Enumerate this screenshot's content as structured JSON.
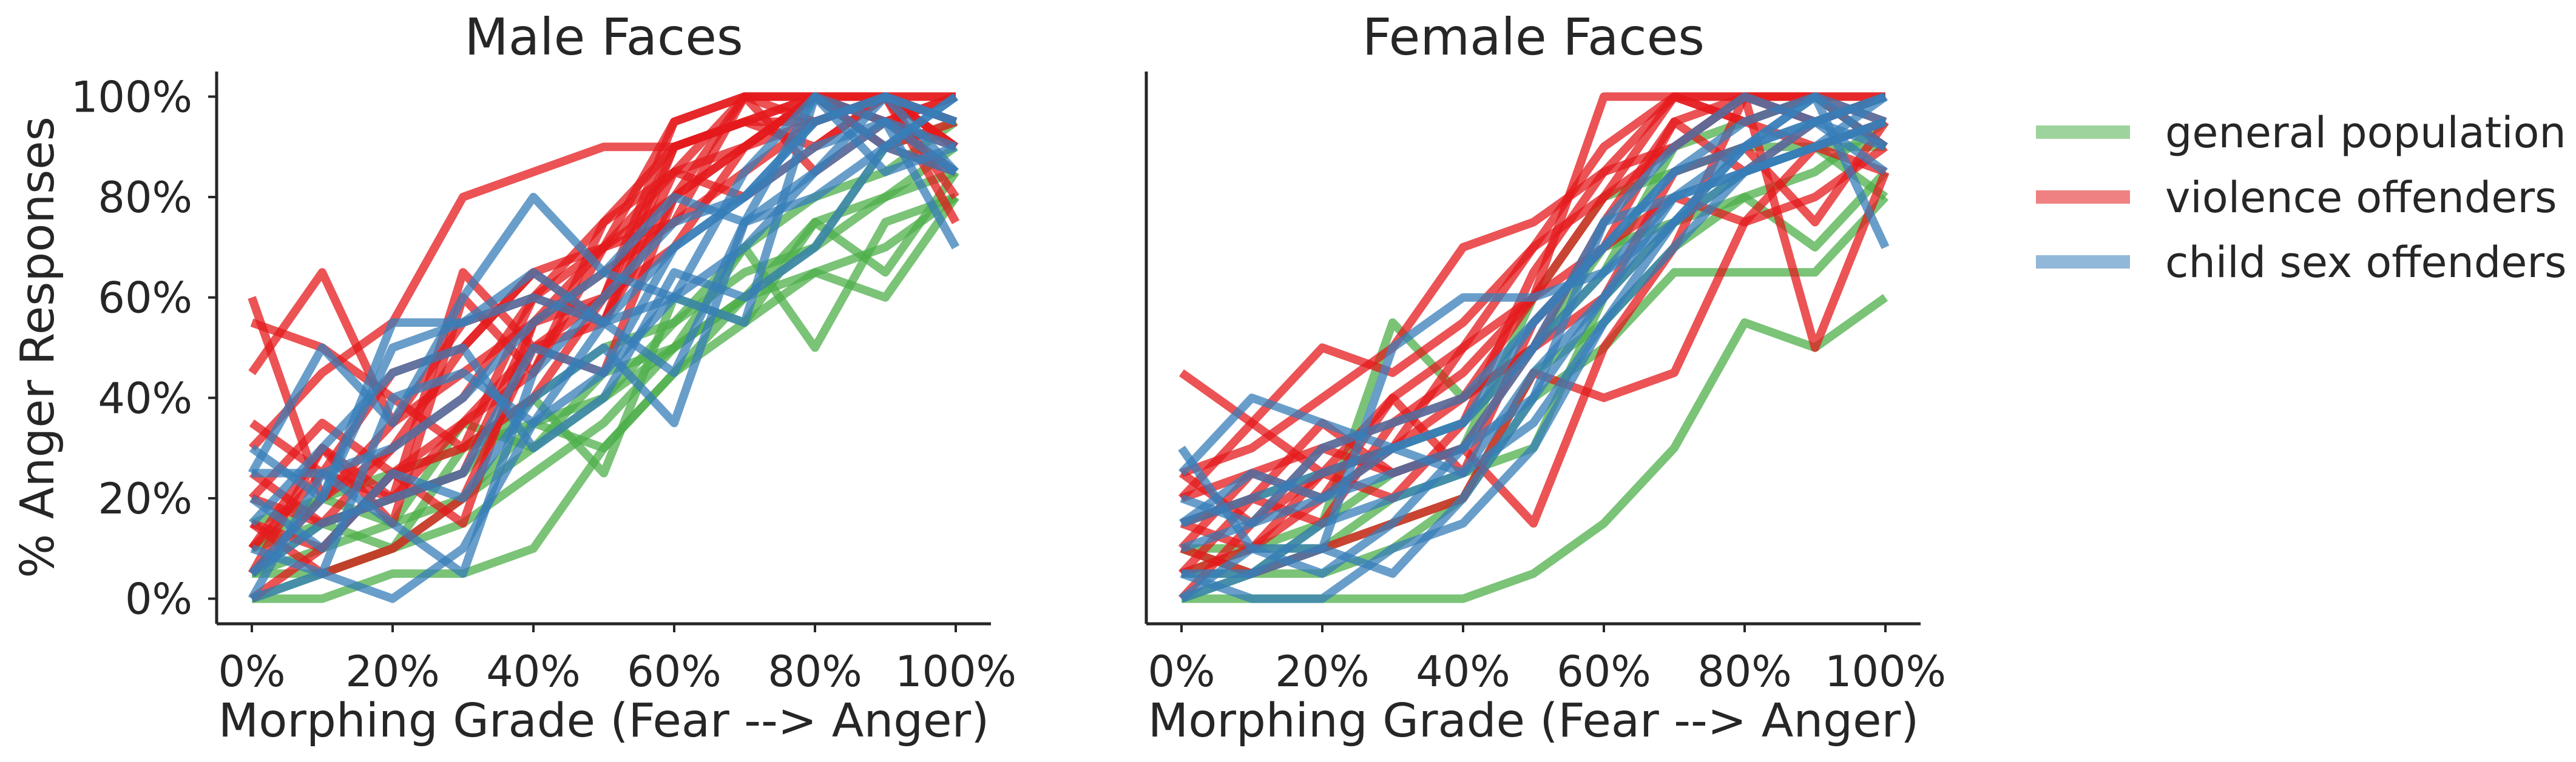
{
  "chart_data": [
    {
      "type": "line",
      "title": "Male Faces",
      "xlabel": "Morphing Grade (Fear --> Anger)",
      "ylabel": "% Anger Responses",
      "x": [
        0,
        10,
        20,
        30,
        40,
        50,
        60,
        70,
        80,
        90,
        100
      ],
      "xticks": [
        0,
        20,
        40,
        60,
        80,
        100
      ],
      "xtick_labels": [
        "0%",
        "20%",
        "40%",
        "60%",
        "80%",
        "100%"
      ],
      "yticks": [
        0,
        20,
        40,
        60,
        80,
        100
      ],
      "ytick_labels": [
        "0%",
        "20%",
        "40%",
        "60%",
        "80%",
        "100%"
      ],
      "xlim": [
        -5,
        105
      ],
      "ylim": [
        -5,
        105
      ],
      "grid": false,
      "groups": [
        {
          "group": "general population",
          "lines": [
            [
              5,
              15,
              10,
              30,
              40,
              25,
              60,
              55,
              75,
              80,
              85
            ],
            [
              10,
              15,
              20,
              25,
              40,
              50,
              55,
              65,
              70,
              80,
              90
            ],
            [
              0,
              5,
              10,
              20,
              30,
              45,
              50,
              70,
              50,
              75,
              80
            ],
            [
              5,
              10,
              15,
              20,
              35,
              30,
              45,
              60,
              75,
              65,
              85
            ],
            [
              15,
              20,
              25,
              30,
              35,
              40,
              50,
              60,
              65,
              60,
              80
            ],
            [
              0,
              0,
              5,
              5,
              10,
              30,
              45,
              55,
              65,
              70,
              80
            ],
            [
              10,
              20,
              15,
              35,
              30,
              40,
              55,
              70,
              80,
              85,
              95
            ],
            [
              5,
              5,
              10,
              15,
              25,
              35,
              50,
              60,
              70,
              90,
              95
            ]
          ]
        },
        {
          "group": "violence offenders",
          "lines": [
            [
              30,
              45,
              55,
              80,
              85,
              90,
              90,
              95,
              95,
              100,
              95
            ],
            [
              60,
              20,
              30,
              50,
              65,
              70,
              85,
              100,
              100,
              95,
              90
            ],
            [
              55,
              50,
              40,
              30,
              60,
              75,
              90,
              95,
              100,
              100,
              90
            ],
            [
              45,
              65,
              35,
              55,
              60,
              70,
              95,
              100,
              100,
              95,
              85
            ],
            [
              15,
              10,
              25,
              35,
              50,
              55,
              80,
              90,
              100,
              100,
              75
            ],
            [
              10,
              25,
              20,
              65,
              50,
              60,
              95,
              100,
              95,
              100,
              90
            ],
            [
              5,
              30,
              15,
              60,
              45,
              70,
              80,
              100,
              100,
              90,
              95
            ],
            [
              20,
              35,
              25,
              15,
              55,
              65,
              75,
              85,
              95,
              100,
              100
            ],
            [
              25,
              15,
              30,
              40,
              60,
              55,
              90,
              95,
              90,
              100,
              95
            ],
            [
              15,
              5,
              10,
              20,
              50,
              45,
              80,
              90,
              100,
              95,
              100
            ],
            [
              0,
              10,
              25,
              30,
              40,
              60,
              70,
              90,
              95,
              100,
              100
            ],
            [
              35,
              25,
              45,
              50,
              65,
              55,
              85,
              80,
              90,
              100,
              90
            ],
            [
              10,
              30,
              20,
              25,
              55,
              70,
              75,
              100,
              85,
              95,
              100
            ],
            [
              5,
              20,
              35,
              45,
              55,
              60,
              90,
              95,
              100,
              90,
              85
            ],
            [
              20,
              15,
              20,
              35,
              45,
              75,
              85,
              90,
              100,
              100,
              80
            ]
          ]
        },
        {
          "group": "child sex offenders",
          "lines": [
            [
              25,
              50,
              35,
              60,
              80,
              65,
              60,
              55,
              100,
              95,
              90
            ],
            [
              5,
              20,
              55,
              55,
              65,
              55,
              45,
              75,
              85,
              95,
              70
            ],
            [
              0,
              5,
              0,
              10,
              35,
              45,
              70,
              80,
              95,
              100,
              95
            ],
            [
              10,
              5,
              40,
              45,
              35,
              55,
              60,
              85,
              100,
              90,
              85
            ],
            [
              30,
              20,
              50,
              55,
              60,
              55,
              70,
              80,
              95,
              100,
              85
            ],
            [
              20,
              10,
              25,
              20,
              40,
              50,
              35,
              75,
              80,
              90,
              100
            ],
            [
              0,
              25,
              15,
              5,
              45,
              60,
              75,
              80,
              90,
              95,
              85
            ],
            [
              15,
              30,
              45,
              50,
              30,
              40,
              65,
              60,
              70,
              90,
              100
            ],
            [
              5,
              15,
              20,
              25,
              50,
              45,
              60,
              70,
              85,
              100,
              95
            ],
            [
              25,
              25,
              30,
              40,
              55,
              65,
              80,
              75,
              100,
              85,
              90
            ]
          ]
        }
      ]
    },
    {
      "type": "line",
      "title": "Female Faces",
      "xlabel": "Morphing Grade (Fear --> Anger)",
      "ylabel": "",
      "x": [
        0,
        10,
        20,
        30,
        40,
        50,
        60,
        70,
        80,
        90,
        100
      ],
      "xticks": [
        0,
        20,
        40,
        60,
        80,
        100
      ],
      "xtick_labels": [
        "0%",
        "20%",
        "40%",
        "60%",
        "80%",
        "100%"
      ],
      "xlim": [
        -5,
        105
      ],
      "ylim": [
        -5,
        105
      ],
      "grid": false,
      "groups": [
        {
          "group": "general population",
          "lines": [
            [
              0,
              0,
              0,
              0,
              0,
              5,
              15,
              30,
              55,
              50,
              60
            ],
            [
              5,
              5,
              10,
              15,
              20,
              40,
              50,
              65,
              65,
              65,
              80
            ],
            [
              10,
              10,
              15,
              55,
              40,
              50,
              70,
              75,
              80,
              70,
              85
            ],
            [
              5,
              10,
              10,
              20,
              25,
              30,
              60,
              75,
              85,
              90,
              90
            ],
            [
              15,
              20,
              25,
              30,
              35,
              50,
              65,
              90,
              95,
              100,
              90
            ],
            [
              0,
              5,
              5,
              10,
              20,
              45,
              55,
              70,
              80,
              85,
              95
            ],
            [
              10,
              5,
              15,
              25,
              30,
              60,
              80,
              85,
              90,
              90,
              80
            ]
          ]
        },
        {
          "group": "violence offenders",
          "lines": [
            [
              45,
              35,
              25,
              40,
              50,
              60,
              100,
              100,
              100,
              100,
              100
            ],
            [
              25,
              30,
              40,
              50,
              70,
              75,
              85,
              100,
              100,
              95,
              100
            ],
            [
              20,
              35,
              50,
              45,
              55,
              70,
              90,
              100,
              95,
              90,
              85
            ],
            [
              10,
              25,
              30,
              25,
              30,
              15,
              50,
              70,
              100,
              100,
              95
            ],
            [
              5,
              20,
              15,
              35,
              45,
              60,
              80,
              90,
              100,
              100,
              90
            ],
            [
              15,
              10,
              20,
              30,
              40,
              50,
              75,
              95,
              85,
              95,
              100
            ],
            [
              0,
              15,
              25,
              20,
              35,
              65,
              85,
              90,
              100,
              95,
              100
            ],
            [
              20,
              25,
              20,
              40,
              25,
              55,
              70,
              95,
              100,
              50,
              85
            ],
            [
              10,
              5,
              10,
              15,
              20,
              45,
              40,
              45,
              75,
              80,
              90
            ],
            [
              25,
              15,
              30,
              35,
              40,
              60,
              70,
              80,
              75,
              90,
              95
            ],
            [
              5,
              10,
              25,
              30,
              50,
              70,
              80,
              100,
              95,
              100,
              100
            ],
            [
              15,
              20,
              35,
              25,
              30,
              50,
              60,
              85,
              90,
              75,
              95
            ]
          ]
        },
        {
          "group": "child sex offenders",
          "lines": [
            [
              30,
              10,
              10,
              50,
              60,
              60,
              65,
              75,
              90,
              100,
              95
            ],
            [
              25,
              40,
              35,
              30,
              25,
              35,
              55,
              75,
              85,
              95,
              90
            ],
            [
              5,
              5,
              15,
              20,
              25,
              45,
              60,
              80,
              85,
              90,
              100
            ],
            [
              15,
              20,
              25,
              30,
              35,
              55,
              70,
              85,
              90,
              95,
              100
            ],
            [
              0,
              10,
              5,
              15,
              30,
              40,
              75,
              90,
              100,
              95,
              85
            ],
            [
              10,
              15,
              20,
              25,
              30,
              50,
              65,
              80,
              90,
              100,
              70
            ],
            [
              5,
              0,
              0,
              10,
              15,
              30,
              55,
              70,
              85,
              90,
              95
            ],
            [
              20,
              15,
              30,
              35,
              40,
              55,
              70,
              85,
              95,
              100,
              90
            ],
            [
              0,
              5,
              10,
              5,
              20,
              40,
              60,
              75,
              90,
              95,
              100
            ],
            [
              15,
              25,
              20,
              30,
              35,
              50,
              75,
              80,
              85,
              90,
              95
            ]
          ]
        }
      ]
    }
  ],
  "legend": {
    "placement": "right",
    "entries": [
      {
        "label": "general population",
        "color": "#4daf4a"
      },
      {
        "label": "violence offenders",
        "color": "#e41a1c"
      },
      {
        "label": "child sex offenders",
        "color": "#377eb8"
      }
    ]
  },
  "colors": {
    "general population": "#4daf4a",
    "violence offenders": "#e41a1c",
    "child sex offenders": "#377eb8"
  }
}
